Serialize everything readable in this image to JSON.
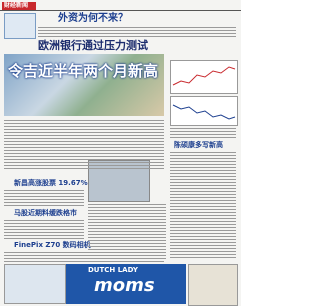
{
  "header": {
    "section": "财经新闻"
  },
  "articles": [
    {
      "headline": "外资为何不来？"
    },
    {
      "kicker": "欧洲银行通过压力测试",
      "headline": "令吉近半年两个月新高"
    },
    {
      "headline": "陈硕康多写新高"
    },
    {
      "headline": "新昌高涨股票 19.67%"
    },
    {
      "headline": "马股近期料缓跌格市"
    },
    {
      "headline": "FinePix Z70 数码相机"
    }
  ],
  "advert": {
    "brand": "DUTCH LADY",
    "product": "moms"
  }
}
